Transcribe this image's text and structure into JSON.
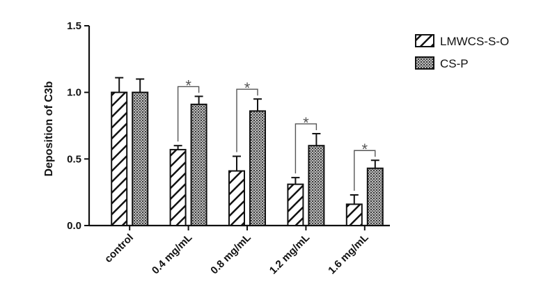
{
  "chart_data": {
    "type": "bar",
    "ylabel": "Deposition of C3b",
    "xlabel": "",
    "title": "",
    "ylim": [
      0,
      1.5
    ],
    "yticks": [
      "0.0",
      "0.5",
      "1.0",
      "1.5"
    ],
    "categories": [
      "control",
      "0.4 mg/mL",
      "0.8 mg/mL",
      "1.2 mg/mL",
      "1.6 mg/mL"
    ],
    "series": [
      {
        "name": "LMWCS-S-O",
        "pattern": "diagonal-stripes",
        "values": [
          1.0,
          0.57,
          0.41,
          0.31,
          0.16
        ],
        "errors": [
          0.11,
          0.03,
          0.11,
          0.05,
          0.07
        ]
      },
      {
        "name": "CS-P",
        "pattern": "crosshatch",
        "values": [
          1.0,
          0.91,
          0.86,
          0.6,
          0.43
        ],
        "errors": [
          0.1,
          0.06,
          0.09,
          0.09,
          0.06
        ]
      }
    ],
    "significance": [
      {
        "category": "0.4 mg/mL",
        "marker": "*"
      },
      {
        "category": "0.8 mg/mL",
        "marker": "*"
      },
      {
        "category": "1.2 mg/mL",
        "marker": "*"
      },
      {
        "category": "1.6 mg/mL",
        "marker": "*"
      }
    ],
    "legend": {
      "position": "top-right"
    },
    "grid": false
  },
  "colors": {
    "ink": "#111111",
    "bracket": "#555555",
    "crosshatch_fill": "#c9c9c9"
  }
}
